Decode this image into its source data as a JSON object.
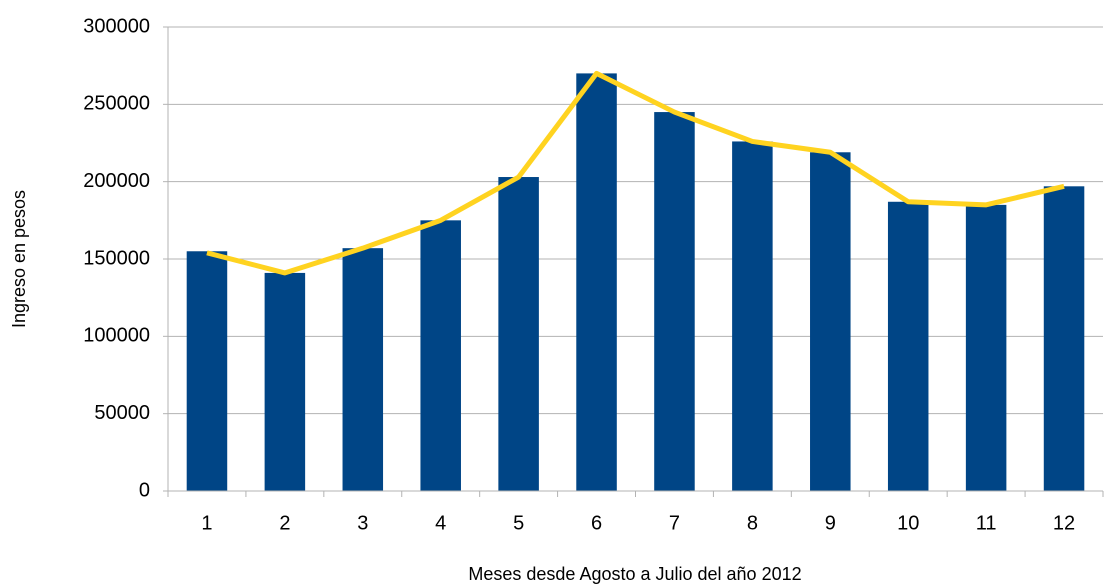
{
  "chart_data": {
    "type": "combo",
    "y_label": "Ingreso en pesos",
    "x_label": "Meses desde Agosto a Julio del año 2012",
    "categories": [
      "1",
      "2",
      "3",
      "4",
      "5",
      "6",
      "7",
      "8",
      "9",
      "10",
      "11",
      "12"
    ],
    "series": [
      {
        "type": "bar",
        "color": "#004586",
        "values": [
          155000,
          141000,
          157000,
          175000,
          203000,
          270000,
          245000,
          226000,
          219000,
          187000,
          185000,
          197000
        ]
      },
      {
        "type": "line",
        "color": "#ffd320",
        "values": [
          154000,
          141000,
          157000,
          175000,
          203000,
          270000,
          245000,
          226000,
          219000,
          187000,
          185000,
          197000
        ]
      }
    ],
    "ylim": [
      0,
      300000
    ],
    "yticks": [
      0,
      50000,
      100000,
      150000,
      200000,
      250000,
      300000
    ],
    "grid": true
  }
}
